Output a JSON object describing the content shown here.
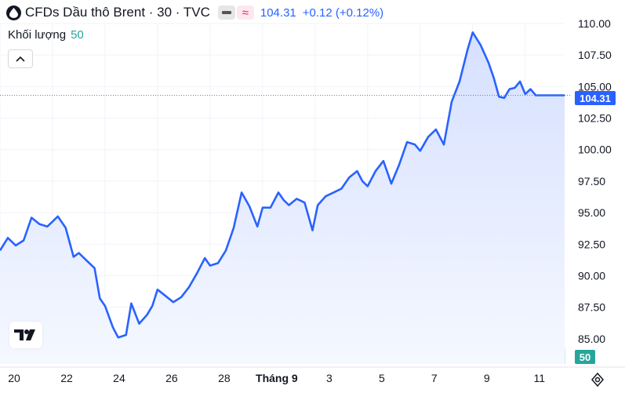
{
  "header": {
    "title": "CFDs Dầu thô Brent · 30 · TVC",
    "last_price": "104.31",
    "change": "+0.12 (+0.12%)",
    "symbol_icon": "drop-icon",
    "tag_icon": "minus-icon",
    "compare_icon": "wave-icon"
  },
  "volume_indicator": {
    "label": "Khối lượng",
    "value": "50"
  },
  "price_badge": "104.31",
  "volume_badge": "50",
  "colors": {
    "line": "#2962ff",
    "area_top": "#d6e0ff",
    "area_bottom": "#f5f8ff",
    "volume_up": "#b2dfdb",
    "volume_down": "#f4c4c4",
    "grid": "#f0f3fa",
    "axis_text": "#131722"
  },
  "chart_data": {
    "type": "line",
    "yaxis_ticks": [
      "110.00",
      "107.50",
      "105.00",
      "102.50",
      "100.00",
      "97.50",
      "95.00",
      "92.50",
      "90.00",
      "87.50",
      "85.00"
    ],
    "xaxis_ticks": [
      "20",
      "22",
      "24",
      "26",
      "28",
      "Tháng 9",
      "3",
      "5",
      "7",
      "9",
      "11"
    ],
    "ylim": [
      83.0,
      110.0
    ],
    "x_label_positions": [
      0,
      2,
      4,
      6,
      8,
      10,
      12,
      14,
      16,
      18,
      20
    ],
    "x_range": [
      0,
      21.5
    ],
    "grid": true,
    "series": [
      {
        "x": [
          0,
          0.3,
          0.6,
          0.9,
          1.2,
          1.5,
          1.8,
          2.0,
          2.2,
          2.5,
          2.8,
          3.0,
          3.3,
          3.6,
          3.8,
          4.0,
          4.3,
          4.5,
          4.8,
          5.0,
          5.3,
          5.6,
          5.8,
          6.0,
          6.3,
          6.6,
          6.9,
          7.2,
          7.5,
          7.8,
          8.0,
          8.3,
          8.6,
          8.9,
          9.2,
          9.5,
          9.8,
          10.0,
          10.3,
          10.6,
          10.8,
          11.0,
          11.3,
          11.6,
          11.9,
          12.1,
          12.4,
          12.7,
          13.0,
          13.3,
          13.6,
          13.8,
          14.0,
          14.3,
          14.6,
          14.9,
          15.2,
          15.5,
          15.8,
          16.0,
          16.3,
          16.6,
          16.9,
          17.2,
          17.5,
          17.8,
          18.0,
          18.3,
          18.6,
          18.8,
          19.0,
          19.2,
          19.4,
          19.6,
          19.8,
          20.0,
          20.2,
          20.4,
          20.6,
          20.8,
          21.0,
          21.2,
          21.4,
          21.5
        ],
        "values": [
          92.0,
          93.0,
          92.4,
          92.8,
          94.6,
          94.1,
          93.9,
          94.3,
          94.7,
          93.8,
          91.5,
          91.8,
          91.2,
          90.6,
          88.2,
          87.6,
          85.9,
          85.1,
          85.3,
          87.8,
          86.2,
          86.9,
          87.6,
          88.9,
          88.4,
          87.9,
          88.3,
          89.1,
          90.2,
          91.4,
          90.8,
          91.0,
          92.0,
          93.8,
          96.6,
          95.5,
          93.9,
          95.4,
          95.4,
          96.6,
          96.0,
          95.6,
          96.1,
          95.8,
          93.6,
          95.6,
          96.3,
          96.6,
          96.9,
          97.8,
          98.3,
          97.5,
          97.1,
          98.3,
          99.1,
          97.3,
          98.8,
          100.6,
          100.4,
          99.9,
          101.0,
          101.6,
          100.4,
          103.8,
          105.4,
          107.9,
          109.3,
          108.3,
          106.9,
          105.7,
          104.2,
          104.1,
          104.8,
          104.9,
          105.4,
          104.4,
          104.8,
          104.31,
          104.31,
          104.31,
          104.31,
          104.31,
          104.31,
          104.31
        ]
      }
    ]
  }
}
